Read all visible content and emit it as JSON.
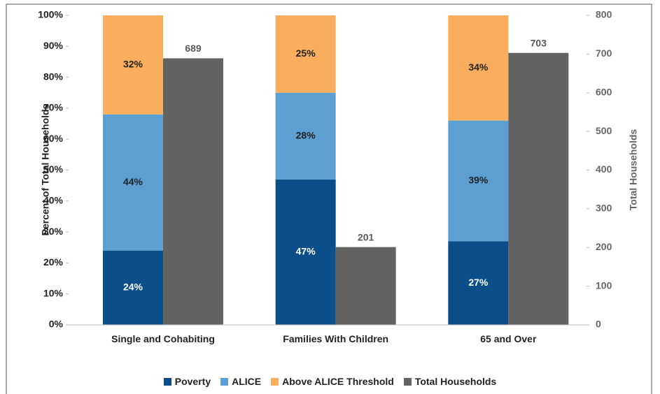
{
  "chart_data": {
    "type": "bar",
    "ylabel": "Percent of Total Households",
    "y2label": "Total Households",
    "categories": [
      "Single and Cohabiting",
      "Families With Children",
      "65 and Over"
    ],
    "series": [
      {
        "name": "Poverty",
        "color": "#0b4f8a",
        "values": [
          24,
          47,
          27
        ],
        "value_labels": [
          "24%",
          "47%",
          "27%"
        ]
      },
      {
        "name": "ALICE",
        "color": "#5b9fd3",
        "values": [
          44,
          28,
          39
        ],
        "value_labels": [
          "44%",
          "28%",
          "39%"
        ]
      },
      {
        "name": "Above ALICE Threshold",
        "color": "#f8ae5c",
        "values": [
          32,
          25,
          34
        ],
        "value_labels": [
          "32%",
          "25%",
          "34%"
        ]
      },
      {
        "name": "Total Households",
        "color": "#636363",
        "axis": "y2",
        "values": [
          689,
          201,
          703
        ]
      }
    ],
    "stacked": true,
    "ylim": [
      0,
      100
    ],
    "yticks": [
      {
        "value": 0,
        "label": "0%"
      },
      {
        "value": 10,
        "label": "10%"
      },
      {
        "value": 20,
        "label": "20%"
      },
      {
        "value": 30,
        "label": "30%"
      },
      {
        "value": 40,
        "label": "40%"
      },
      {
        "value": 50,
        "label": "50%"
      },
      {
        "value": 60,
        "label": "60%"
      },
      {
        "value": 70,
        "label": "70%"
      },
      {
        "value": 80,
        "label": "80%"
      },
      {
        "value": 90,
        "label": "90%"
      },
      {
        "value": 100,
        "label": "100%"
      }
    ],
    "y2lim": [
      0,
      800
    ],
    "y2ticks": [
      0,
      100,
      200,
      300,
      400,
      500,
      600,
      700,
      800
    ],
    "legend": "bottom"
  }
}
